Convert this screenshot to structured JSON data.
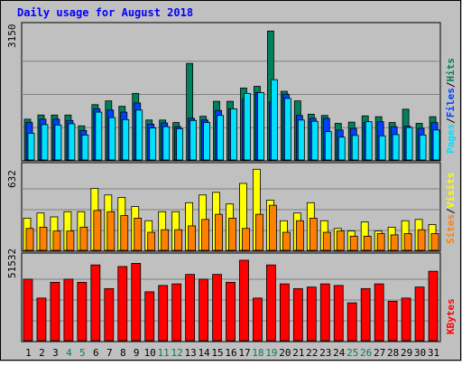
{
  "colors": {
    "background": "#C0C0C0",
    "plot": "#C0C0C0",
    "hits": "#00805C",
    "files": "#0040FF",
    "pages": "#00E0FF",
    "visits": "#FFFF00",
    "sites": "#FF8000",
    "kbytes": "#FF0000",
    "title": "#0000FF",
    "weekend_label": "#00805C",
    "weekday_label": "#000000"
  },
  "chart_data": {
    "title": "Daily usage for August 2018",
    "days": [
      "1",
      "2",
      "3",
      "4",
      "5",
      "6",
      "7",
      "8",
      "9",
      "10",
      "11",
      "12",
      "13",
      "14",
      "15",
      "16",
      "17",
      "18",
      "19",
      "20",
      "21",
      "22",
      "23",
      "24",
      "25",
      "26",
      "27",
      "28",
      "29",
      "30",
      "31"
    ],
    "weekend_days": [
      "4",
      "5",
      "11",
      "12",
      "18",
      "19",
      "25",
      "26"
    ],
    "panels": [
      {
        "id": "hits-files-pages",
        "type": "bar",
        "max_label": "3150",
        "ymax": 3150,
        "legend": [
          "Pages",
          "Files",
          "Hits"
        ],
        "legend_separator": "/",
        "series": [
          {
            "name": "Hits",
            "values": [
              980,
              1080,
              1080,
              1080,
              820,
              1330,
              1420,
              1290,
              1600,
              960,
              960,
              900,
              2320,
              1050,
              1410,
              1410,
              1730,
              1770,
              3100,
              1650,
              1420,
              1100,
              1070,
              880,
              910,
              1060,
              1040,
              900,
              1220,
              880,
              1040
            ]
          },
          {
            "name": "Files",
            "values": [
              900,
              980,
              980,
              950,
              710,
              1230,
              1200,
              1150,
              1370,
              860,
              890,
              800,
              1000,
              960,
              1190,
              1230,
              1460,
              1620,
              1390,
              1580,
              1070,
              1000,
              1000,
              720,
              760,
              900,
              920,
              800,
              810,
              760,
              900
            ]
          },
          {
            "name": "Pages",
            "values": [
              640,
              850,
              840,
              870,
              600,
              1150,
              1020,
              970,
              1200,
              770,
              800,
              750,
              950,
              900,
              1070,
              1230,
              1600,
              1620,
              1930,
              1480,
              960,
              930,
              680,
              550,
              590,
              920,
              580,
              610,
              780,
              600,
              720
            ]
          }
        ]
      },
      {
        "id": "visits-sites",
        "type": "bar",
        "max_label": "632",
        "ymax": 632,
        "legend": [
          "Sites",
          "Visits"
        ],
        "legend_separator": "/",
        "series": [
          {
            "name": "Visits",
            "values": [
              250,
              290,
              260,
              300,
              300,
              480,
              430,
              410,
              340,
              230,
              300,
              300,
              370,
              430,
              450,
              360,
              520,
              630,
              390,
              230,
              290,
              370,
              230,
              170,
              150,
              220,
              150,
              180,
              230,
              240,
              200
            ]
          },
          {
            "name": "Sites",
            "values": [
              170,
              180,
              150,
              150,
              180,
              310,
              300,
              270,
              250,
              140,
              160,
              160,
              190,
              240,
              280,
              250,
              170,
              280,
              350,
              140,
              230,
              250,
              140,
              150,
              110,
              110,
              130,
              120,
              130,
              160,
              130
            ]
          }
        ]
      },
      {
        "id": "kbytes",
        "type": "bar",
        "max_label": "51532",
        "ymax": 51532,
        "legend": [
          "KBytes"
        ],
        "legend_separator": "",
        "series": [
          {
            "name": "KBytes",
            "values": [
              39000,
              27000,
              37000,
              39000,
              37000,
              48000,
              33000,
              47000,
              49000,
              31000,
              35000,
              36000,
              42000,
              39000,
              42000,
              37000,
              51000,
              27000,
              48000,
              36000,
              33000,
              34000,
              36000,
              35000,
              24000,
              33000,
              36000,
              25000,
              27000,
              34000,
              44000
            ]
          }
        ]
      }
    ]
  }
}
